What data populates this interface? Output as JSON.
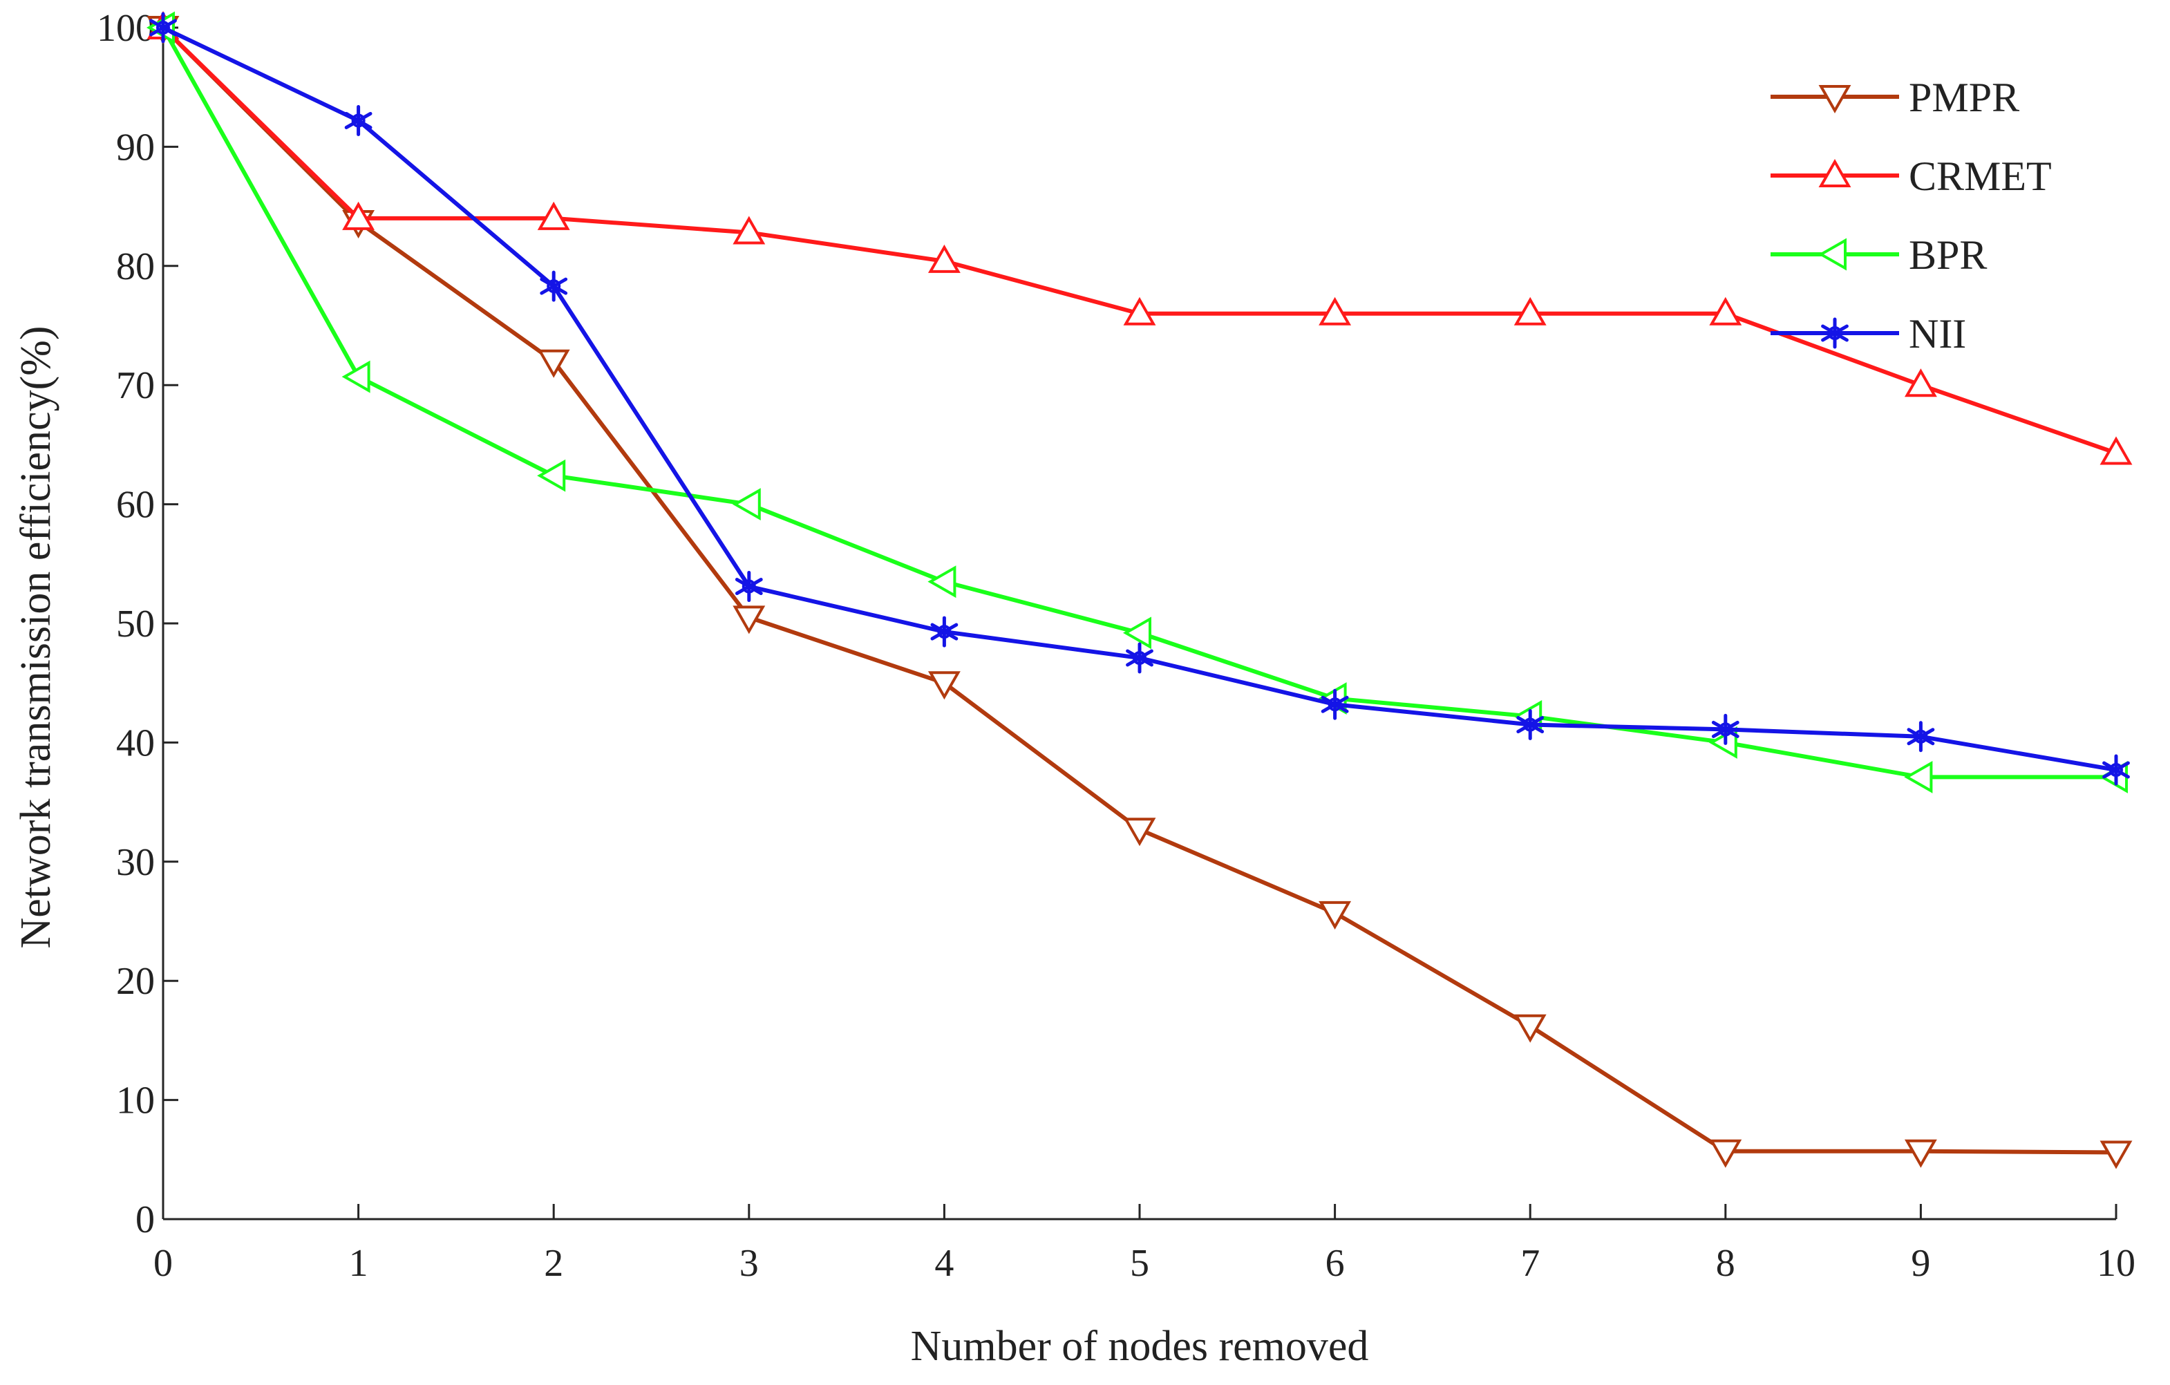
{
  "chart_data": {
    "type": "line",
    "title": "",
    "xlabel": "Number of nodes removed",
    "ylabel": "Network transmission efficiency(%)",
    "x": [
      0,
      1,
      2,
      3,
      4,
      5,
      6,
      7,
      8,
      9,
      10
    ],
    "xlim": [
      0,
      10
    ],
    "ylim": [
      0,
      100
    ],
    "xticks": [
      0,
      1,
      2,
      3,
      4,
      5,
      6,
      7,
      8,
      9,
      10
    ],
    "yticks": [
      0,
      10,
      20,
      30,
      40,
      50,
      60,
      70,
      80,
      90,
      100
    ],
    "grid": false,
    "legend_position": "top-right",
    "series": [
      {
        "name": "PMPR",
        "color": "#b23a0e",
        "marker": "triangle-down",
        "values": [
          100,
          83.7,
          72,
          50.5,
          45,
          32.7,
          25.7,
          16.2,
          5.7,
          5.7,
          5.6
        ]
      },
      {
        "name": "CRMET",
        "color": "#ff1a1a",
        "marker": "triangle-up",
        "values": [
          100,
          84,
          84,
          82.8,
          80.4,
          76,
          76,
          76,
          76,
          70,
          64.3
        ]
      },
      {
        "name": "BPR",
        "color": "#1aff1a",
        "marker": "triangle-left",
        "values": [
          100,
          70.7,
          62.4,
          60,
          53.5,
          49.2,
          43.7,
          42.2,
          40,
          37.1,
          37.1
        ]
      },
      {
        "name": "NII",
        "color": "#1414e6",
        "marker": "star",
        "values": [
          100,
          92.2,
          78.3,
          53.1,
          49.3,
          47.1,
          43.2,
          41.5,
          41.1,
          40.5,
          37.7
        ]
      }
    ]
  }
}
